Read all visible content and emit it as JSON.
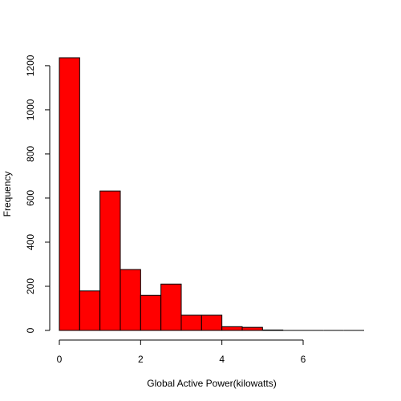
{
  "chart_data": {
    "type": "bar",
    "title": "",
    "xlabel": "Global Active Power(kilowatts)",
    "ylabel": "Frequency",
    "bar_color": "#ff0000",
    "bins": [
      {
        "start": 0.0,
        "end": 0.5,
        "count": 1236
      },
      {
        "start": 0.5,
        "end": 1.0,
        "count": 179
      },
      {
        "start": 1.0,
        "end": 1.5,
        "count": 632
      },
      {
        "start": 1.5,
        "end": 2.0,
        "count": 276
      },
      {
        "start": 2.0,
        "end": 2.5,
        "count": 159
      },
      {
        "start": 2.5,
        "end": 3.0,
        "count": 210
      },
      {
        "start": 3.0,
        "end": 3.5,
        "count": 69
      },
      {
        "start": 3.5,
        "end": 4.0,
        "count": 69
      },
      {
        "start": 4.0,
        "end": 4.5,
        "count": 17
      },
      {
        "start": 4.5,
        "end": 5.0,
        "count": 14
      },
      {
        "start": 5.0,
        "end": 5.5,
        "count": 2
      },
      {
        "start": 5.5,
        "end": 6.0,
        "count": 0
      },
      {
        "start": 6.0,
        "end": 6.5,
        "count": 0
      },
      {
        "start": 6.5,
        "end": 7.0,
        "count": 0
      },
      {
        "start": 7.0,
        "end": 7.5,
        "count": 0
      }
    ],
    "x_ticks": [
      0,
      2,
      4,
      6
    ],
    "x_tick_labels": [
      "0",
      "2",
      "4",
      "6"
    ],
    "y_ticks": [
      0,
      200,
      400,
      600,
      800,
      1000,
      1200
    ],
    "y_tick_labels": [
      "0",
      "200",
      "400",
      "600",
      "800",
      "1000",
      "1200"
    ],
    "xlim": [
      0,
      7.5
    ],
    "ylim": [
      0,
      1236
    ],
    "grid": false,
    "legend": "none"
  }
}
